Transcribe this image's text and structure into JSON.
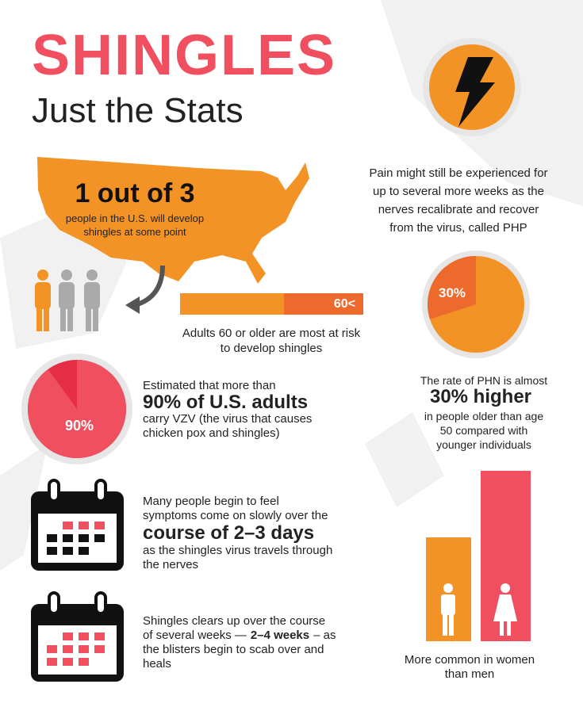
{
  "header": {
    "title": "SHINGLES",
    "subtitle": "Just the Stats"
  },
  "us_stat": {
    "headline": "1 out of 3",
    "lines": [
      "people in the U.S. will develop",
      "shingles at some point"
    ]
  },
  "age_stat": {
    "bar_label": "60<",
    "lines": [
      "Adults 60 or older are most at risk",
      "to develop shingles"
    ]
  },
  "pain_stat": {
    "lines": [
      "Pain might still be experienced for",
      "up to several more weeks as the",
      "nerves recalibrate and recover",
      "from the virus, called PHP"
    ]
  },
  "phn_stat": {
    "pie": {
      "value": 30,
      "label": "30%"
    },
    "intro": "The rate of PHN is almost",
    "highlight": "30% higher",
    "lines": [
      "in people older than age",
      "50 compared with",
      "younger individuals"
    ]
  },
  "vzv_stat": {
    "pie": {
      "value": 90,
      "label": "90%"
    },
    "intro": "Estimated that more than",
    "highlight": "90% of U.S. adults",
    "lines": [
      "carry VZV (the virus that causes",
      "chicken pox and shingles)"
    ]
  },
  "symptoms_stat": {
    "lines_before": [
      "Many people begin to feel",
      "symptoms come on slowly over the"
    ],
    "highlight": "course of 2–3 days",
    "lines_after": [
      "as the shingles virus travels through",
      "the nerves"
    ]
  },
  "clear_stat": {
    "line1": "Shingles clears up over the course",
    "line2_before": "of several weeks —",
    "line2_bold": "2–4 weeks",
    "line2_after": "– as",
    "line3": "the blisters begin to scab over and",
    "line4": "heals"
  },
  "gender_stat": {
    "lines": [
      "More common in women",
      "than men"
    ]
  }
}
